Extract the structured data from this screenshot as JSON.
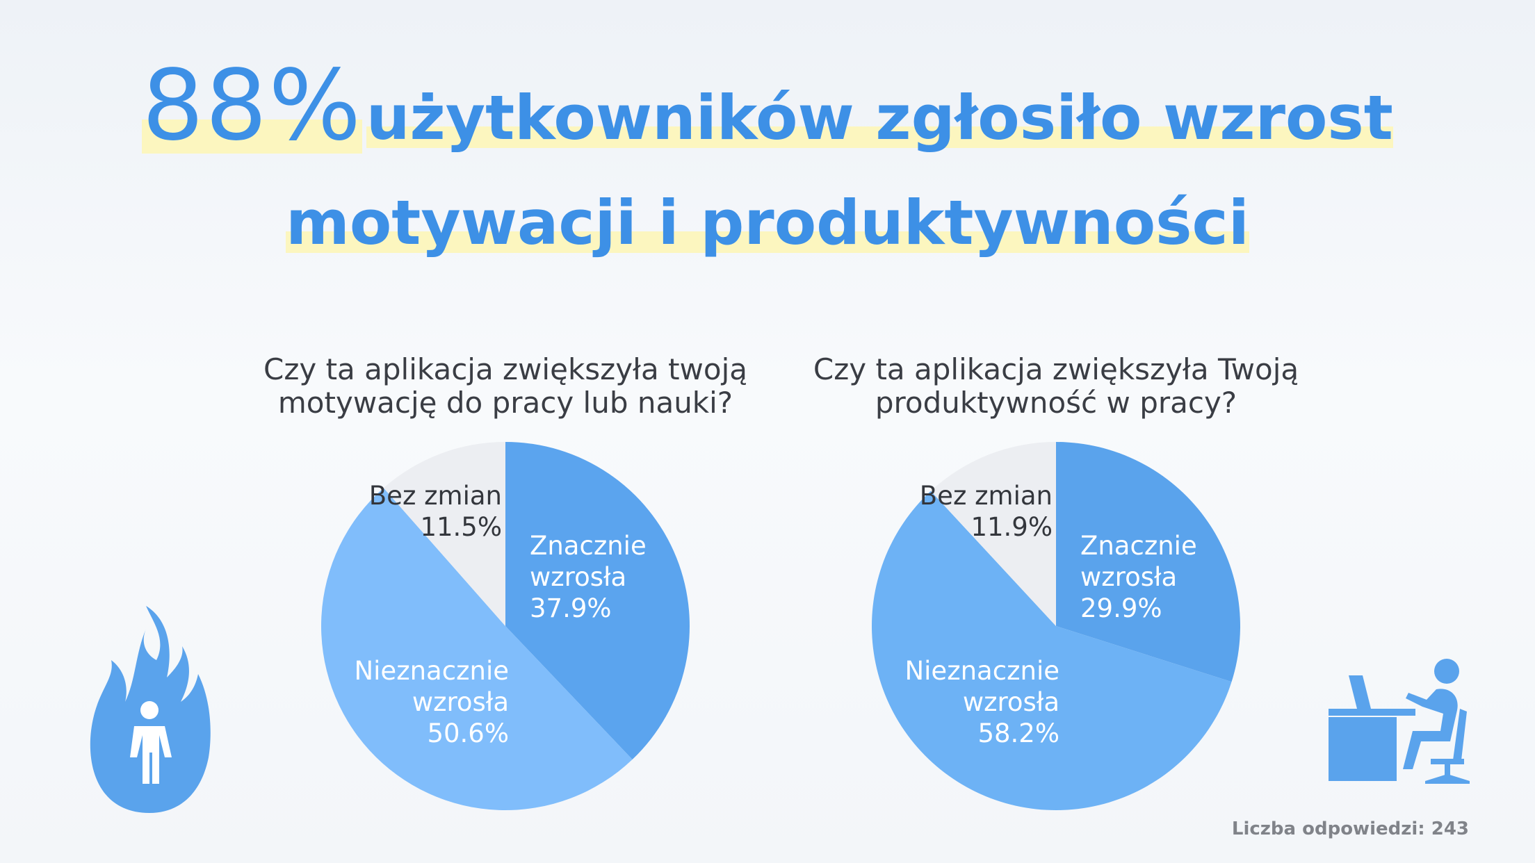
{
  "header": {
    "highlight": "88%",
    "title": "użytkowników zgłosiło wzrost motywacji i produktywności"
  },
  "chart_data": [
    {
      "type": "pie",
      "title": "Czy ta aplikacja zwiększyła twoją motywację do pracy lub nauki?",
      "categories": [
        "Znacznie wzrosła",
        "Nieznacznie wzrosła",
        "Bez zmian"
      ],
      "values": [
        37.9,
        50.6,
        11.5
      ],
      "value_labels": [
        "37.9%",
        "50.6%",
        "11.5%"
      ],
      "colors": [
        "#5ba4ee",
        "#80bdfb",
        "#eceef2"
      ]
    },
    {
      "type": "pie",
      "title": "Czy ta aplikacja zwiększyła Twoją produktywność w pracy?",
      "categories": [
        "Znacznie wzrosła",
        "Nieznacznie wzrosła",
        "Bez zmian"
      ],
      "values": [
        29.9,
        58.2,
        11.9
      ],
      "value_labels": [
        "29.9%",
        "58.2%",
        "11.9%"
      ],
      "colors": [
        "#5aa3ec",
        "#6db2f5",
        "#eceef2"
      ]
    }
  ],
  "footer": {
    "note": "Liczba odpowiedzi: 243"
  }
}
